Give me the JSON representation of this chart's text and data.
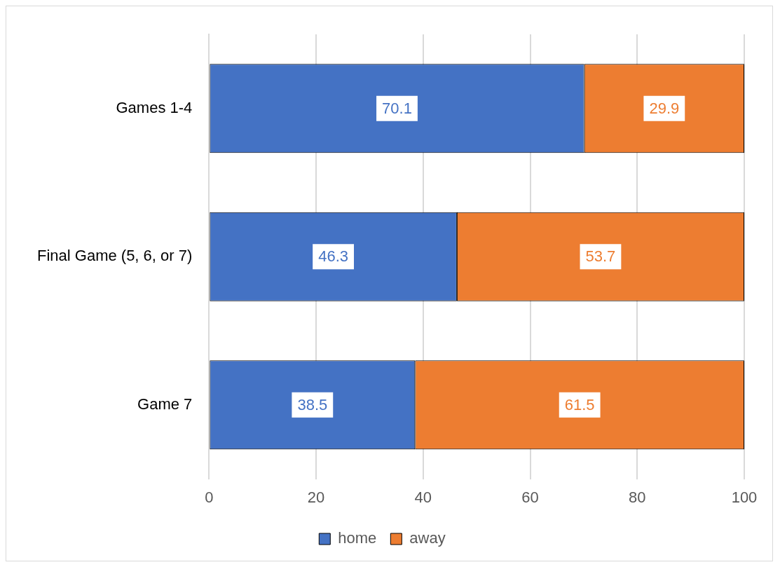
{
  "chart_data": {
    "type": "bar",
    "orientation": "horizontal",
    "stacked": true,
    "categories": [
      "Games 1-4",
      "Final Game (5, 6, or 7)",
      "Game 7"
    ],
    "series": [
      {
        "name": "home",
        "color": "#4472c4",
        "values": [
          70.1,
          46.3,
          38.5
        ]
      },
      {
        "name": "away",
        "color": "#ed7d31",
        "values": [
          29.9,
          53.7,
          61.5
        ]
      }
    ],
    "xlim": [
      0,
      100
    ],
    "xticks": [
      0,
      20,
      40,
      60,
      80,
      100
    ],
    "grid": "x",
    "legend": "bottom",
    "data_labels": true
  }
}
